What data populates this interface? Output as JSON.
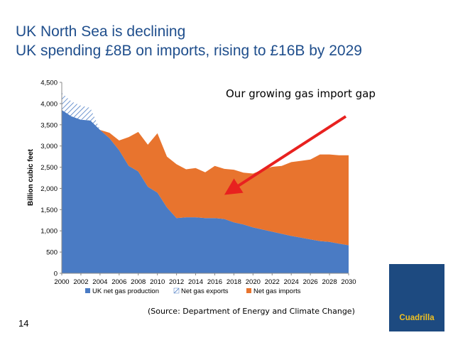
{
  "slide": {
    "title_line1": "UK North Sea is declining",
    "title_line2": "UK spending £8B on imports, rising to £16B by 2029",
    "annotation": "Our growing gas import gap",
    "source": "(Source: Department of Energy and Climate Change)",
    "page_number": "14",
    "logo_text": "Cuadrilla"
  },
  "colors": {
    "title": "#1f4e8c",
    "production": "#4a7bc4",
    "exports_hatch": "#4a7bc4",
    "imports": "#e8742e",
    "arrow": "#e8211f",
    "logo_bg": "#1d4a80",
    "logo_text": "#f0c020"
  },
  "chart_data": {
    "type": "area",
    "stacked": true,
    "ylabel": "Billion cubic feet",
    "xlabel": "",
    "ylim": [
      0,
      4500
    ],
    "y_ticks": [
      0,
      500,
      1000,
      1500,
      2000,
      2500,
      3000,
      3500,
      4000,
      4500
    ],
    "y_tick_labels": [
      "0",
      "500",
      "1,000",
      "1,500",
      "2,000",
      "2,500",
      "3,000",
      "3,500",
      "4,000",
      "4,500"
    ],
    "x_tick_labels": [
      "2000",
      "2002",
      "2004",
      "2006",
      "2008",
      "2010",
      "2012",
      "2014",
      "2016",
      "2018",
      "2020",
      "2022",
      "2024",
      "2026",
      "2028",
      "2030"
    ],
    "x": [
      2000,
      2001,
      2002,
      2003,
      2004,
      2005,
      2006,
      2007,
      2008,
      2009,
      2010,
      2011,
      2012,
      2013,
      2014,
      2015,
      2016,
      2017,
      2018,
      2019,
      2020,
      2021,
      2022,
      2023,
      2024,
      2025,
      2026,
      2027,
      2028,
      2029,
      2030
    ],
    "series": [
      {
        "name": "UK net gas production",
        "style": "solid",
        "values": [
          3850,
          3700,
          3620,
          3600,
          3380,
          3180,
          2900,
          2530,
          2400,
          2040,
          1900,
          1550,
          1300,
          1320,
          1320,
          1300,
          1300,
          1280,
          1200,
          1150,
          1080,
          1030,
          980,
          930,
          880,
          840,
          800,
          760,
          740,
          700,
          660
        ]
      },
      {
        "name": "Net gas exports",
        "style": "hatched",
        "values": [
          400,
          350,
          330,
          300,
          0,
          0,
          0,
          0,
          0,
          0,
          0,
          0,
          0,
          0,
          0,
          0,
          0,
          0,
          0,
          0,
          0,
          0,
          0,
          0,
          0,
          0,
          0,
          0,
          0,
          0,
          0
        ]
      },
      {
        "name": "Net gas imports",
        "style": "solid",
        "values": [
          0,
          0,
          0,
          0,
          0,
          130,
          230,
          680,
          930,
          990,
          1400,
          1200,
          1270,
          1130,
          1160,
          1080,
          1230,
          1180,
          1240,
          1220,
          1270,
          1410,
          1530,
          1600,
          1740,
          1810,
          1880,
          2040,
          2060,
          2080,
          2120
        ]
      }
    ],
    "legend_position": "bottom",
    "grid": false
  }
}
